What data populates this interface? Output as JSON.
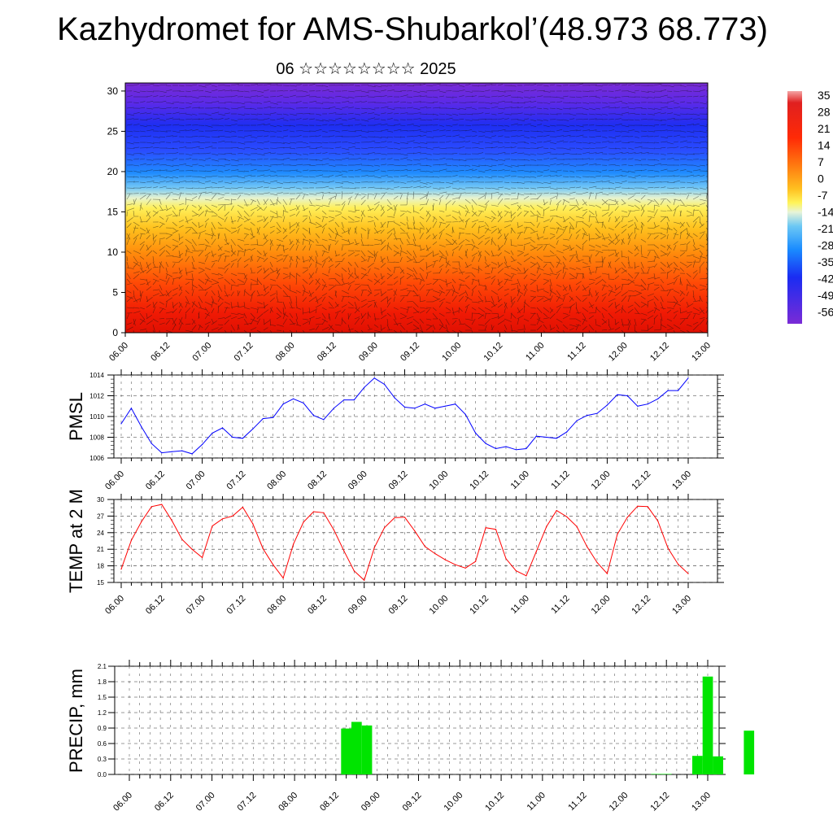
{
  "header": {
    "title": "Kazhydromet for AMS-Shubarkol’(48.973 68.773)",
    "subtitle": "06 ☆☆☆☆☆☆☆☆ 2025"
  },
  "colors": {
    "pmsl_line": "#0000ff",
    "temp_line": "#ff0000",
    "precip_bar": "#00e400"
  },
  "x_tick_labels": [
    "06.00",
    "06.12",
    "07.00",
    "07.12",
    "08.00",
    "08.12",
    "09.00",
    "09.12",
    "10.00",
    "10.12",
    "11.00",
    "11.12",
    "12.00",
    "12.12",
    "13.00"
  ],
  "chart_data": [
    {
      "type": "heatmap",
      "title": "",
      "y_ticks": [
        0,
        5,
        10,
        15,
        20,
        25,
        30
      ],
      "ylim": [
        0,
        31
      ],
      "x_ticks": [
        "06.00",
        "06.12",
        "07.00",
        "07.12",
        "08.00",
        "08.12",
        "09.00",
        "09.12",
        "10.00",
        "10.12",
        "11.00",
        "11.12",
        "12.00",
        "12.12",
        "13.00"
      ],
      "colorbar_labels": [
        "35",
        "28",
        "21",
        "14",
        "7",
        "0",
        "-7",
        "-14",
        "-21",
        "-28",
        "-35",
        "-42",
        "-49",
        "-56"
      ],
      "overlay": "wind vectors"
    },
    {
      "type": "line",
      "ylabel": "PMSL",
      "ylim": [
        1006,
        1014
      ],
      "y_ticks": [
        1006,
        1008,
        1010,
        1012,
        1014
      ],
      "x_ticks": [
        "06.00",
        "06.12",
        "07.00",
        "07.12",
        "08.00",
        "08.12",
        "09.00",
        "09.12",
        "10.00",
        "10.12",
        "11.00",
        "11.12",
        "12.00",
        "12.12",
        "13.00"
      ],
      "values": [
        1009.3,
        1010.8,
        1009.0,
        1007.4,
        1006.5,
        1006.6,
        1006.7,
        1006.4,
        1007.3,
        1008.4,
        1008.9,
        1008.0,
        1007.9,
        1008.8,
        1009.8,
        1009.9,
        1011.2,
        1011.7,
        1011.3,
        1010.1,
        1009.7,
        1010.8,
        1011.6,
        1011.6,
        1012.8,
        1013.7,
        1013.1,
        1011.8,
        1010.9,
        1010.8,
        1011.2,
        1010.8,
        1011.0,
        1011.2,
        1010.2,
        1008.4,
        1007.4,
        1006.9,
        1007.1,
        1006.8,
        1006.9,
        1008.1,
        1008.0,
        1007.9,
        1008.5,
        1009.6,
        1010.1,
        1010.3,
        1011.1,
        1012.1,
        1012.0,
        1011.0,
        1011.2,
        1011.7,
        1012.5,
        1012.5,
        1013.7
      ]
    },
    {
      "type": "line",
      "ylabel": "TEMP at 2 M",
      "ylim": [
        15,
        30
      ],
      "y_ticks": [
        15,
        18,
        21,
        24,
        27,
        30
      ],
      "x_ticks": [
        "06.00",
        "06.12",
        "07.00",
        "07.12",
        "08.00",
        "08.12",
        "09.00",
        "09.12",
        "10.00",
        "10.12",
        "11.00",
        "11.12",
        "12.00",
        "12.12",
        "13.00"
      ],
      "values": [
        17.4,
        22.6,
        26.0,
        28.7,
        29.1,
        26.2,
        22.8,
        21.0,
        19.5,
        25.2,
        26.5,
        27.0,
        28.6,
        25.6,
        21.1,
        18.2,
        15.8,
        21.9,
        25.9,
        27.8,
        27.6,
        24.5,
        20.7,
        17.1,
        15.4,
        21.3,
        24.9,
        26.7,
        26.8,
        24.3,
        21.5,
        20.2,
        19.1,
        18.2,
        17.6,
        18.8,
        24.9,
        24.6,
        19.3,
        17.1,
        16.2,
        20.6,
        25.1,
        28.0,
        26.9,
        25.1,
        21.5,
        18.6,
        16.6,
        23.7,
        26.8,
        28.8,
        28.7,
        26.1,
        21.2,
        18.3,
        16.6
      ]
    },
    {
      "type": "bar",
      "ylabel": "PRECIP, mm",
      "ylim": [
        0,
        2.1
      ],
      "y_ticks": [
        "0.0",
        "0.3",
        "0.6",
        "0.9",
        "1.2",
        "1.5",
        "1.8",
        "2.1"
      ],
      "x_ticks": [
        "06.00",
        "06.12",
        "07.00",
        "07.12",
        "08.00",
        "08.12",
        "09.00",
        "09.12",
        "10.00",
        "10.12",
        "11.00",
        "11.12",
        "12.00",
        "12.12",
        "13.00"
      ],
      "bars": [
        {
          "x": 21.0,
          "value": 0.89
        },
        {
          "x": 22.0,
          "value": 1.02
        },
        {
          "x": 23.0,
          "value": 0.95
        },
        {
          "x": 51.0,
          "value": 0.01
        },
        {
          "x": 52.0,
          "value": 0.01
        },
        {
          "x": 55.0,
          "value": 0.36
        },
        {
          "x": 56.0,
          "value": 1.9
        },
        {
          "x": 57.0,
          "value": 0.35
        },
        {
          "x": 60.0,
          "value": 0.85
        }
      ]
    }
  ]
}
